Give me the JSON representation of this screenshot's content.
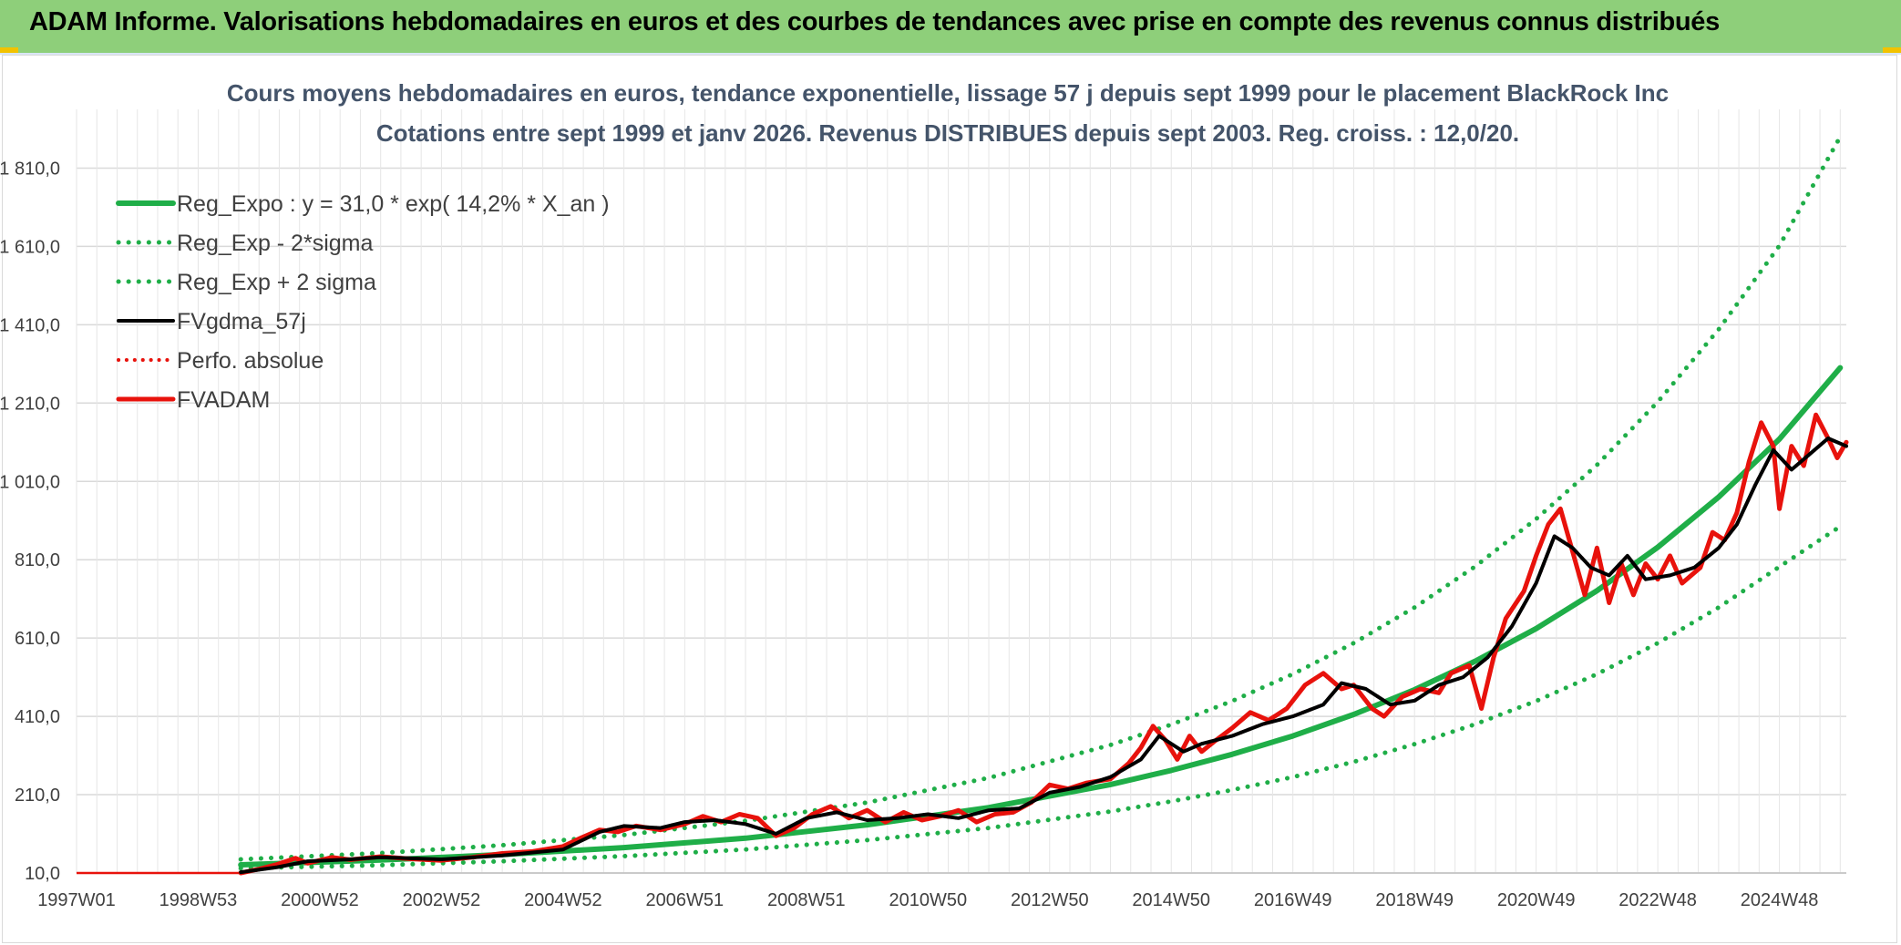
{
  "header": {
    "title": "ADAM Informe. Valorisations hebdomadaires en euros et des courbes de tendances avec prise en compte des revenus connus distribués"
  },
  "colors": {
    "banner": "#8ecf7a",
    "trend": "#1fae48",
    "smooth": "#000000",
    "price": "#e8120c",
    "grid": "#d9d9d9"
  },
  "chart_data": {
    "type": "line",
    "title": "Cours moyens hebdomadaires en euros, tendance exponentielle, lissage 57 j depuis sept 1999 pour le placement BlackRock Inc",
    "subtitle": "Cotations entre sept 1999 et janv 2026. Revenus DISTRIBUES depuis sept 2003. Reg. croiss. : 12,0/20.",
    "x_range": [
      1997.0,
      2026.1
    ],
    "ylim": [
      10,
      1960
    ],
    "y_ticks": [
      10,
      210,
      410,
      610,
      810,
      1010,
      1210,
      1410,
      1610,
      1810
    ],
    "y_tick_labels": [
      "10,0",
      "210,0",
      "410,0",
      "610,0",
      "810,0",
      "1 010,0",
      "1 210,0",
      "1 410,0",
      "1 610,0",
      "1 810,0"
    ],
    "x_ticks": [
      1997.0,
      1999.0,
      2001.0,
      2003.0,
      2005.0,
      2007.0,
      2009.0,
      2011.0,
      2013.0,
      2015.0,
      2017.0,
      2019.0,
      2021.0,
      2023.0,
      2025.0
    ],
    "x_tick_labels": [
      "1997W01",
      "1998W53",
      "2000W52",
      "2002W52",
      "2004W52",
      "2006W51",
      "2008W51",
      "2010W50",
      "2012W50",
      "2014W50",
      "2016W49",
      "2018W49",
      "2020W49",
      "2022W48",
      "2024W48"
    ],
    "start_flat": {
      "from": 1997.0,
      "to": 1999.7,
      "value": 10
    },
    "legend": [
      {
        "name": "Reg_Expo : y = 31,0 * exp( 14,2% *  X_an )",
        "color": "#1fae48",
        "style": "solid",
        "width": 6
      },
      {
        "name": "Reg_Exp - 2*sigma",
        "color": "#1fae48",
        "style": "dotted",
        "width": 5
      },
      {
        "name": "Reg_Exp + 2 sigma",
        "color": "#1fae48",
        "style": "dotted",
        "width": 5
      },
      {
        "name": "FVgdma_57j",
        "color": "#000000",
        "style": "solid",
        "width": 4
      },
      {
        "name": "Perfo. absolue",
        "color": "#e8120c",
        "style": "dotted",
        "width": 4
      },
      {
        "name": "FVADAM",
        "color": "#e8120c",
        "style": "solid",
        "width": 5
      }
    ],
    "series": [
      {
        "name": "Reg_Expo",
        "x": [
          1999.7,
          2002,
          2004,
          2006,
          2008,
          2010,
          2012,
          2014,
          2015,
          2016,
          2017,
          2018,
          2019,
          2020,
          2021,
          2022,
          2023,
          2024,
          2025,
          2026
        ],
        "values": [
          31,
          43,
          57,
          75,
          99,
          133,
          177,
          236,
          272,
          313,
          360,
          415,
          478,
          551,
          634,
          731,
          842,
          970,
          1118,
          1300
        ]
      },
      {
        "name": "Reg_Exp - 2*sigma",
        "x": [
          1999.7,
          2002,
          2004,
          2006,
          2008,
          2010,
          2012,
          2014,
          2015,
          2016,
          2017,
          2018,
          2019,
          2020,
          2021,
          2022,
          2023,
          2024,
          2025,
          2026
        ],
        "values": [
          22,
          30,
          40,
          53,
          70,
          94,
          125,
          167,
          193,
          222,
          255,
          294,
          339,
          390,
          449,
          518,
          597,
          688,
          792,
          895
        ]
      },
      {
        "name": "Reg_Exp + 2 sigma",
        "x": [
          1999.7,
          2002,
          2004,
          2006,
          2008,
          2010,
          2012,
          2014,
          2015,
          2016,
          2017,
          2018,
          2019,
          2020,
          2021,
          2022,
          2023,
          2024,
          2025,
          2026
        ],
        "values": [
          45,
          61,
          81,
          107,
          143,
          190,
          253,
          337,
          389,
          449,
          518,
          597,
          688,
          793,
          914,
          1052,
          1213,
          1398,
          1612,
          1890
        ]
      },
      {
        "name": "FVgdma_57j",
        "x": [
          1999.7,
          2000.3,
          2000.8,
          2001.5,
          2002,
          2003,
          2004,
          2005,
          2005.6,
          2006,
          2006.6,
          2007,
          2007.5,
          2008,
          2008.5,
          2009,
          2009.5,
          2010,
          2010.5,
          2011,
          2011.5,
          2012,
          2012.5,
          2013,
          2013.5,
          2014,
          2014.5,
          2014.8,
          2015.2,
          2015.5,
          2016,
          2016.5,
          2017,
          2017.5,
          2017.8,
          2018.2,
          2018.6,
          2019,
          2019.4,
          2019.8,
          2020.2,
          2020.6,
          2021,
          2021.3,
          2021.6,
          2021.9,
          2022.2,
          2022.5,
          2022.8,
          2023.2,
          2023.6,
          2024,
          2024.3,
          2024.6,
          2024.9,
          2025.2,
          2025.5,
          2025.8,
          2026.1
        ],
        "values": [
          12,
          25,
          40,
          45,
          50,
          45,
          55,
          70,
          115,
          130,
          125,
          140,
          145,
          135,
          110,
          150,
          165,
          145,
          150,
          160,
          150,
          170,
          175,
          215,
          230,
          255,
          300,
          360,
          320,
          340,
          360,
          390,
          410,
          440,
          495,
          480,
          440,
          450,
          490,
          510,
          560,
          640,
          750,
          870,
          840,
          790,
          770,
          820,
          760,
          770,
          790,
          840,
          900,
          1000,
          1090,
          1040,
          1080,
          1120,
          1100
        ]
      },
      {
        "name": "Perfo. absolue",
        "x": [
          1999.7,
          2000.3,
          2000.8,
          2001.5,
          2002,
          2003,
          2004,
          2005,
          2005.6,
          2006,
          2006.6,
          2007,
          2007.5,
          2008,
          2008.5,
          2009,
          2009.5,
          2010,
          2010.5,
          2011,
          2011.5,
          2012,
          2012.5,
          2013,
          2013.5,
          2014,
          2014.5,
          2014.8,
          2015.2,
          2015.5,
          2016,
          2016.5,
          2017,
          2017.5,
          2017.8,
          2018.2,
          2018.6,
          2019,
          2019.4,
          2019.8,
          2020.2,
          2020.6,
          2021,
          2021.3,
          2021.6,
          2021.9,
          2022.2,
          2022.5,
          2022.8,
          2023.2,
          2023.6,
          2024,
          2024.3,
          2024.6,
          2024.9,
          2025.2,
          2025.5,
          2025.8,
          2026.1
        ],
        "values": [
          12,
          25,
          40,
          45,
          50,
          45,
          55,
          70,
          115,
          130,
          125,
          140,
          145,
          135,
          110,
          150,
          165,
          145,
          150,
          160,
          150,
          170,
          175,
          215,
          230,
          255,
          300,
          360,
          320,
          340,
          360,
          390,
          410,
          440,
          495,
          480,
          440,
          450,
          490,
          510,
          560,
          640,
          750,
          870,
          840,
          790,
          770,
          820,
          760,
          770,
          790,
          840,
          900,
          1000,
          1090,
          1040,
          1080,
          1120,
          1100
        ]
      },
      {
        "name": "FVADAM",
        "x": [
          1999.7,
          2000.0,
          2000.3,
          2000.6,
          2000.8,
          2001.2,
          2001.5,
          2002,
          2002.5,
          2003,
          2003.5,
          2004,
          2004.5,
          2005,
          2005.3,
          2005.6,
          2005.9,
          2006.2,
          2006.6,
          2007,
          2007.3,
          2007.6,
          2007.9,
          2008.2,
          2008.5,
          2008.8,
          2009.1,
          2009.4,
          2009.7,
          2010,
          2010.3,
          2010.6,
          2010.9,
          2011.2,
          2011.5,
          2011.8,
          2012.1,
          2012.4,
          2012.7,
          2013,
          2013.3,
          2013.6,
          2014,
          2014.3,
          2014.5,
          2014.7,
          2014.9,
          2015.1,
          2015.3,
          2015.5,
          2015.7,
          2016,
          2016.3,
          2016.6,
          2016.9,
          2017.2,
          2017.5,
          2017.8,
          2018.0,
          2018.3,
          2018.5,
          2018.8,
          2019.1,
          2019.4,
          2019.6,
          2019.9,
          2020.1,
          2020.3,
          2020.5,
          2020.8,
          2021.0,
          2021.2,
          2021.4,
          2021.6,
          2021.8,
          2022.0,
          2022.2,
          2022.4,
          2022.6,
          2022.8,
          2023.0,
          2023.2,
          2023.4,
          2023.7,
          2023.9,
          2024.1,
          2024.3,
          2024.5,
          2024.7,
          2024.9,
          2025.0,
          2025.2,
          2025.4,
          2025.6,
          2025.8,
          2025.95,
          2026.1
        ],
        "values": [
          10,
          20,
          32,
          48,
          35,
          50,
          44,
          52,
          46,
          42,
          50,
          60,
          65,
          78,
          100,
          120,
          115,
          130,
          120,
          135,
          155,
          140,
          160,
          150,
          105,
          125,
          160,
          180,
          150,
          170,
          140,
          165,
          145,
          155,
          170,
          140,
          160,
          165,
          190,
          235,
          225,
          240,
          250,
          290,
          330,
          385,
          350,
          300,
          360,
          320,
          345,
          380,
          420,
          400,
          430,
          490,
          520,
          480,
          490,
          430,
          410,
          460,
          480,
          470,
          520,
          540,
          430,
          560,
          660,
          730,
          820,
          900,
          940,
          830,
          720,
          840,
          700,
          800,
          720,
          800,
          760,
          820,
          750,
          790,
          880,
          860,
          930,
          1060,
          1160,
          1100,
          940,
          1100,
          1050,
          1180,
          1120,
          1070,
          1110
        ]
      }
    ]
  }
}
